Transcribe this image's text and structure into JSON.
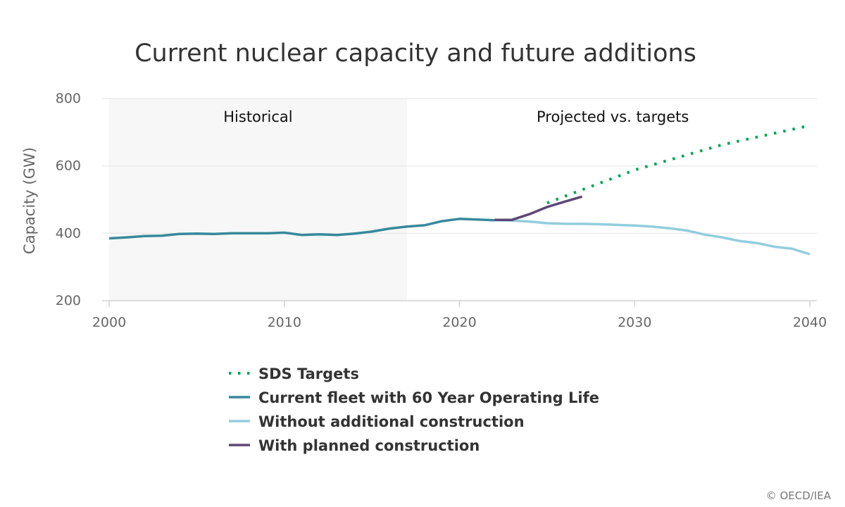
{
  "chart_data": {
    "type": "line",
    "title": "Current nuclear capacity and future additions",
    "ylabel": "Capacity (GW)",
    "xlabel": "",
    "xlim": [
      2000,
      2040.5
    ],
    "ylim": [
      200,
      800
    ],
    "x_ticks": [
      2000,
      2010,
      2020,
      2030,
      2040
    ],
    "y_ticks": [
      200,
      400,
      600,
      800
    ],
    "grid": "horizontal",
    "bands": [
      {
        "label": "Historical",
        "from": 2000,
        "to": 2017,
        "color": "#f7f7f7"
      },
      {
        "label": "Projected vs. targets",
        "from": 2017,
        "to": 2040.5,
        "color": "#ffffff"
      }
    ],
    "series": [
      {
        "name": "SDS Targets",
        "color": "#00a651",
        "style": "dotted",
        "x": [
          2025,
          2030,
          2035,
          2040
        ],
        "y": [
          490,
          588,
          663,
          720
        ]
      },
      {
        "name": "Current fleet with 60 Year Operating Life",
        "color": "#37899b",
        "style": "solid",
        "x": [
          2000,
          2001,
          2002,
          2003,
          2004,
          2005,
          2006,
          2007,
          2008,
          2009,
          2010,
          2011,
          2012,
          2013,
          2014,
          2015,
          2016,
          2017,
          2018,
          2019,
          2020,
          2021,
          2022
        ],
        "y": [
          385,
          388,
          392,
          393,
          398,
          399,
          398,
          400,
          400,
          400,
          402,
          395,
          397,
          395,
          399,
          405,
          414,
          420,
          424,
          436,
          443,
          441,
          439
        ]
      },
      {
        "name": "Without additional construction",
        "color": "#93cddd",
        "style": "solid",
        "x": [
          2022,
          2023,
          2024,
          2025,
          2026,
          2027,
          2028,
          2029,
          2030,
          2031,
          2032,
          2033,
          2034,
          2035,
          2036,
          2037,
          2038,
          2039,
          2040
        ],
        "y": [
          439,
          438,
          435,
          430,
          428,
          428,
          427,
          425,
          423,
          420,
          415,
          408,
          396,
          388,
          377,
          371,
          360,
          354,
          338
        ]
      },
      {
        "name": "With planned construction",
        "color": "#5c4776",
        "style": "solid",
        "x": [
          2022,
          2023,
          2024,
          2025,
          2026,
          2027
        ],
        "y": [
          440,
          440,
          457,
          478,
          494,
          509
        ]
      }
    ]
  },
  "legend": {
    "items": [
      "SDS Targets",
      "Current fleet with 60 Year Operating Life",
      "Without additional construction",
      "With planned construction"
    ],
    "placement": "bottom"
  },
  "credit": "© OECD/IEA"
}
